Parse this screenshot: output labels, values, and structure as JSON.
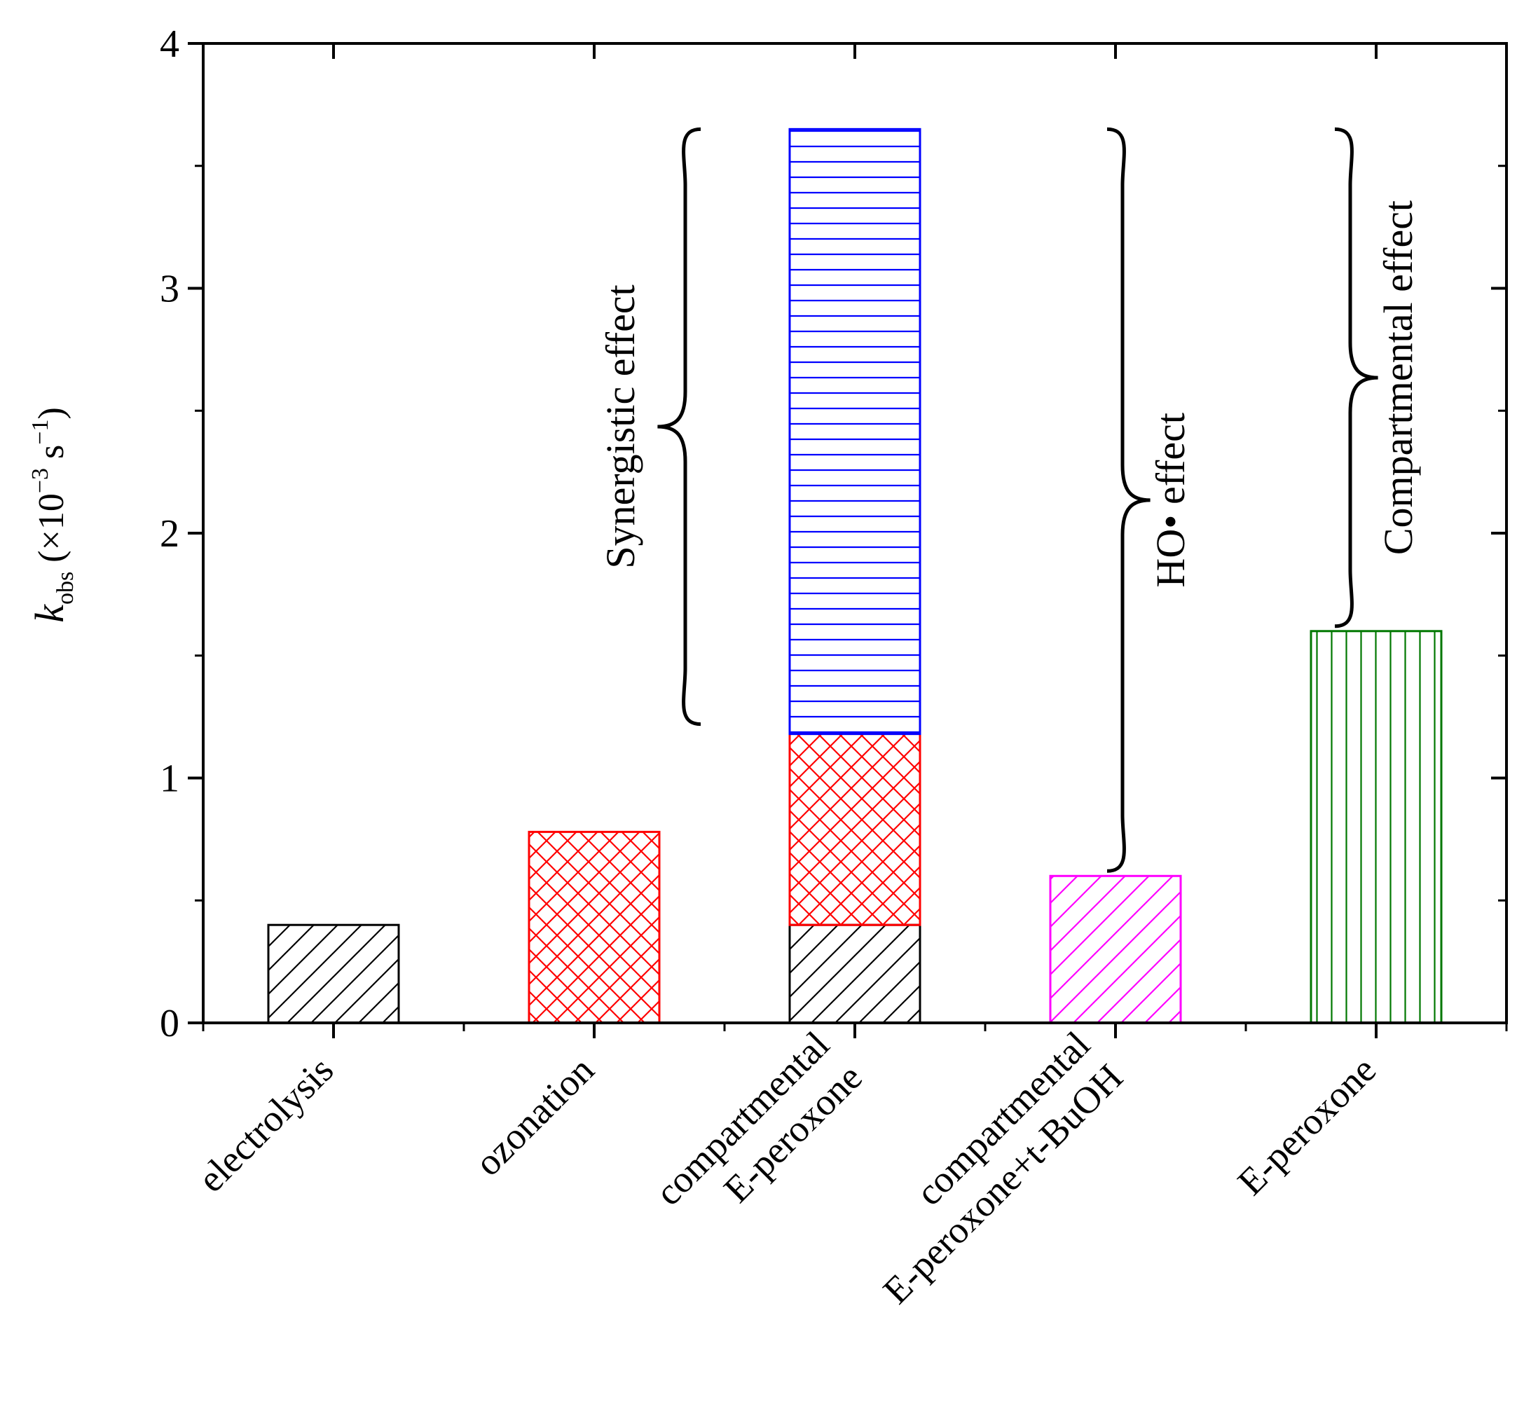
{
  "chart_data": {
    "type": "bar",
    "ylabel": {
      "symbol": "k",
      "subscript": "obs",
      "open": "(×10",
      "exp": "−3",
      "unit": "s",
      "unit_exp": "−1",
      "close": ")"
    },
    "ylim": [
      0,
      4
    ],
    "yticks": [
      "0",
      "1",
      "2",
      "3",
      "4"
    ],
    "categories": [
      {
        "lines": [
          "electrolysis"
        ]
      },
      {
        "lines": [
          "ozonation"
        ]
      },
      {
        "lines": [
          "compartmental",
          "E-peroxone"
        ]
      },
      {
        "lines": [
          "compartmental",
          "E-peroxone+t-BuOH"
        ]
      },
      {
        "lines": [
          "E-peroxone"
        ]
      }
    ],
    "bars": [
      {
        "segments": [
          {
            "from": 0,
            "to": 0.4,
            "color": "#000000",
            "pattern": "diagonal"
          }
        ]
      },
      {
        "segments": [
          {
            "from": 0,
            "to": 0.78,
            "color": "#ff0000",
            "pattern": "crosshatch"
          }
        ]
      },
      {
        "segments": [
          {
            "from": 0,
            "to": 0.4,
            "color": "#000000",
            "pattern": "diagonal"
          },
          {
            "from": 0.4,
            "to": 1.18,
            "color": "#ff0000",
            "pattern": "crosshatch"
          },
          {
            "from": 1.18,
            "to": 3.65,
            "color": "#0000ff",
            "pattern": "horizontal"
          }
        ]
      },
      {
        "segments": [
          {
            "from": 0,
            "to": 0.6,
            "color": "#ff00ff",
            "pattern": "diagonal"
          }
        ]
      },
      {
        "segments": [
          {
            "from": 0,
            "to": 1.6,
            "color": "#007700",
            "pattern": "vertical"
          }
        ]
      }
    ],
    "annotations": [
      {
        "text": "Synergistic effect",
        "from": 1.22,
        "to": 3.65
      },
      {
        "text": "HO• effect",
        "from": 0.62,
        "to": 3.65
      },
      {
        "text": "Compartmental effect",
        "from": 1.62,
        "to": 3.65
      }
    ]
  }
}
